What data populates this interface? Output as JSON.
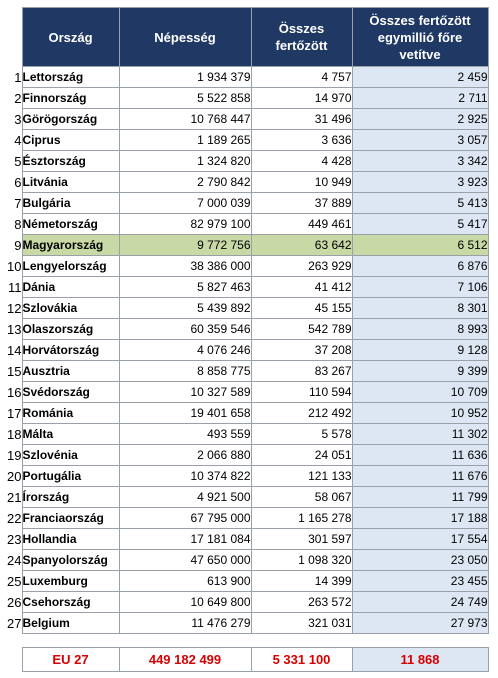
{
  "headers": {
    "country": "Ország",
    "population": "Népesség",
    "infected": "Összes fertőzött",
    "per_million": "Összes fertőzött egymillió főre vetítve"
  },
  "rows": [
    {
      "n": "1",
      "country": "Lettország",
      "population": "1 934 379",
      "infected": "4 757",
      "per_million": "2 459"
    },
    {
      "n": "2",
      "country": "Finnország",
      "population": "5 522 858",
      "infected": "14 970",
      "per_million": "2 711"
    },
    {
      "n": "3",
      "country": "Görögország",
      "population": "10 768 447",
      "infected": "31 496",
      "per_million": "2 925"
    },
    {
      "n": "4",
      "country": "Ciprus",
      "population": "1 189 265",
      "infected": "3 636",
      "per_million": "3 057"
    },
    {
      "n": "5",
      "country": "Észtország",
      "population": "1 324 820",
      "infected": "4 428",
      "per_million": "3 342"
    },
    {
      "n": "6",
      "country": "Litvánia",
      "population": "2 790 842",
      "infected": "10 949",
      "per_million": "3 923"
    },
    {
      "n": "7",
      "country": "Bulgária",
      "population": "7 000 039",
      "infected": "37 889",
      "per_million": "5 413"
    },
    {
      "n": "8",
      "country": "Németország",
      "population": "82 979 100",
      "infected": "449 461",
      "per_million": "5 417"
    },
    {
      "n": "9",
      "country": "Magyarország",
      "population": "9 772 756",
      "infected": "63 642",
      "per_million": "6 512"
    },
    {
      "n": "10",
      "country": "Lengyelország",
      "population": "38 386 000",
      "infected": "263 929",
      "per_million": "6 876"
    },
    {
      "n": "11",
      "country": "Dánia",
      "population": "5 827 463",
      "infected": "41 412",
      "per_million": "7 106"
    },
    {
      "n": "12",
      "country": "Szlovákia",
      "population": "5 439 892",
      "infected": "45 155",
      "per_million": "8 301"
    },
    {
      "n": "13",
      "country": "Olaszország",
      "population": "60 359 546",
      "infected": "542 789",
      "per_million": "8 993"
    },
    {
      "n": "14",
      "country": "Horvátország",
      "population": "4 076 246",
      "infected": "37 208",
      "per_million": "9 128"
    },
    {
      "n": "15",
      "country": "Ausztria",
      "population": "8 858 775",
      "infected": "83 267",
      "per_million": "9 399"
    },
    {
      "n": "16",
      "country": "Svédország",
      "population": "10 327 589",
      "infected": "110 594",
      "per_million": "10 709"
    },
    {
      "n": "17",
      "country": "Románia",
      "population": "19 401 658",
      "infected": "212 492",
      "per_million": "10 952"
    },
    {
      "n": "18",
      "country": "Málta",
      "population": "493 559",
      "infected": "5 578",
      "per_million": "11 302"
    },
    {
      "n": "19",
      "country": "Szlovénia",
      "population": "2 066 880",
      "infected": "24 051",
      "per_million": "11 636"
    },
    {
      "n": "20",
      "country": "Portugália",
      "population": "10 374 822",
      "infected": "121 133",
      "per_million": "11 676"
    },
    {
      "n": "21",
      "country": "Írország",
      "population": "4 921 500",
      "infected": "58 067",
      "per_million": "11 799"
    },
    {
      "n": "22",
      "country": "Franciaország",
      "population": "67 795 000",
      "infected": "1 165 278",
      "per_million": "17 188"
    },
    {
      "n": "23",
      "country": "Hollandia",
      "population": "17 181 084",
      "infected": "301 597",
      "per_million": "17 554"
    },
    {
      "n": "24",
      "country": "Spanyolország",
      "population": "47 650 000",
      "infected": "1 098 320",
      "per_million": "23 050"
    },
    {
      "n": "25",
      "country": "Luxemburg",
      "population": "613 900",
      "infected": "14 399",
      "per_million": "23 455"
    },
    {
      "n": "26",
      "country": "Csehország",
      "population": "10 649 800",
      "infected": "263 572",
      "per_million": "24 749"
    },
    {
      "n": "27",
      "country": "Belgium",
      "population": "11 476 279",
      "infected": "321 031",
      "per_million": "27 973"
    }
  ],
  "highlight_row": "9",
  "total": {
    "label": "EU 27",
    "population": "449 182 499",
    "infected": "5 331 100",
    "per_million": "11 868"
  },
  "colors": {
    "header_bg": "#1f3864",
    "highlight": "#c9d9a6",
    "ratio_bg": "#dde7f3",
    "total_text": "#d60000"
  }
}
